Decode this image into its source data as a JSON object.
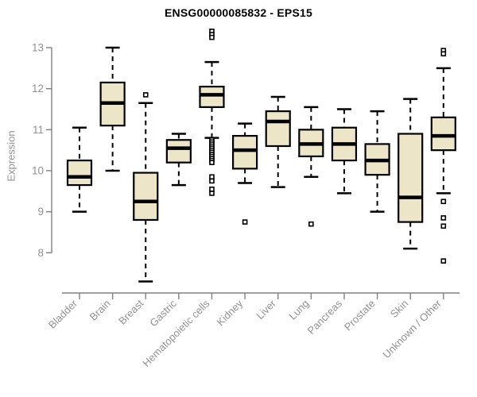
{
  "chart_data": {
    "type": "boxplot",
    "title": "ENSG00000085832 - EPS15",
    "ylabel": "Expression",
    "xlabel": "",
    "ylim": [
      8,
      13
    ],
    "yticks": [
      8,
      9,
      10,
      11,
      12,
      13
    ],
    "grid": false,
    "legend": "none",
    "categories": [
      "Bladder",
      "Brain",
      "Breast",
      "Gastric",
      "Hematopoietic cells",
      "Kidney",
      "Liver",
      "Lung",
      "Pancreas",
      "Prostate",
      "Skin",
      "Unknown / Other"
    ],
    "boxes": [
      {
        "category": "Bladder",
        "whisker_low": 9.0,
        "q1": 9.65,
        "median": 9.85,
        "q3": 10.25,
        "whisker_high": 11.05,
        "outliers": []
      },
      {
        "category": "Brain",
        "whisker_low": 10.0,
        "q1": 11.1,
        "median": 11.65,
        "q3": 12.15,
        "whisker_high": 13.0,
        "outliers": []
      },
      {
        "category": "Breast",
        "whisker_low": 7.3,
        "q1": 8.8,
        "median": 9.25,
        "q3": 9.95,
        "whisker_high": 11.65,
        "outliers": [
          11.85
        ]
      },
      {
        "category": "Gastric",
        "whisker_low": 9.65,
        "q1": 10.2,
        "median": 10.55,
        "q3": 10.75,
        "whisker_high": 10.9,
        "outliers": []
      },
      {
        "category": "Hematopoietic cells",
        "whisker_low": 10.8,
        "q1": 11.55,
        "median": 11.85,
        "q3": 12.05,
        "whisker_high": 12.65,
        "outliers": [
          13.4,
          13.32,
          13.25,
          10.75,
          10.7,
          10.65,
          10.6,
          10.55,
          10.5,
          10.45,
          10.4,
          10.35,
          10.3,
          10.25,
          10.2,
          9.85,
          9.75,
          9.55,
          9.45
        ]
      },
      {
        "category": "Kidney",
        "whisker_low": 9.7,
        "q1": 10.05,
        "median": 10.5,
        "q3": 10.85,
        "whisker_high": 11.15,
        "outliers": [
          8.75
        ]
      },
      {
        "category": "Liver",
        "whisker_low": 9.6,
        "q1": 10.6,
        "median": 11.2,
        "q3": 11.45,
        "whisker_high": 11.8,
        "outliers": []
      },
      {
        "category": "Lung",
        "whisker_low": 9.85,
        "q1": 10.35,
        "median": 10.65,
        "q3": 11.0,
        "whisker_high": 11.55,
        "outliers": [
          8.7
        ]
      },
      {
        "category": "Pancreas",
        "whisker_low": 9.45,
        "q1": 10.25,
        "median": 10.65,
        "q3": 11.05,
        "whisker_high": 11.5,
        "outliers": []
      },
      {
        "category": "Prostate",
        "whisker_low": 9.0,
        "q1": 9.9,
        "median": 10.25,
        "q3": 10.65,
        "whisker_high": 11.45,
        "outliers": []
      },
      {
        "category": "Skin",
        "whisker_low": 8.1,
        "q1": 8.75,
        "median": 9.35,
        "q3": 10.9,
        "whisker_high": 11.75,
        "outliers": []
      },
      {
        "category": "Unknown / Other",
        "whisker_low": 9.45,
        "q1": 10.5,
        "median": 10.85,
        "q3": 11.3,
        "whisker_high": 12.5,
        "outliers": [
          12.93,
          12.85,
          9.25,
          8.85,
          8.65,
          7.8
        ]
      }
    ],
    "colors": {
      "box_fill": "#EDE5C7",
      "box_border": "#000000",
      "median_line": "#000000",
      "whisker": "#000000",
      "outlier_fill": "#FFFFFF",
      "outlier_border": "#000000",
      "axis_line": "#808080",
      "axis_text": "#919191",
      "title_text": "#000000",
      "background": "#FFFFFF"
    }
  }
}
